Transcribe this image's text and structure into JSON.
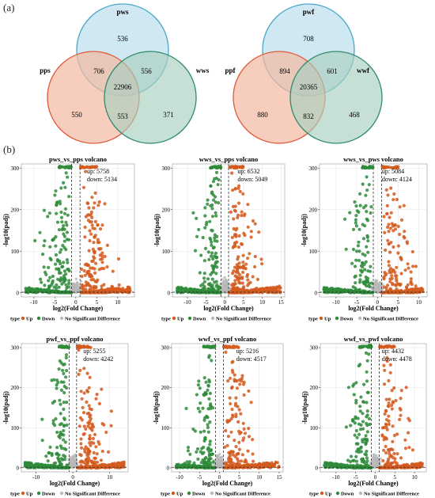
{
  "panel_labels": {
    "a": "(a)",
    "b": "(b)"
  },
  "venns": [
    {
      "sets": [
        "pws",
        "pps",
        "wws"
      ],
      "regions": {
        "top_only": "536",
        "left_only": "550",
        "right_only": "371",
        "top_left": "706",
        "top_right": "556",
        "left_right": "553",
        "center": "22906"
      }
    },
    {
      "sets": [
        "pwf",
        "ppf",
        "wwf"
      ],
      "regions": {
        "top_only": "708",
        "left_only": "880",
        "right_only": "468",
        "top_left": "894",
        "top_right": "601",
        "left_right": "832",
        "center": "20365"
      }
    }
  ],
  "colors": {
    "venn_top_fill": "#bfe0ee",
    "venn_top_stroke": "#4aa7c8",
    "venn_left_fill": "#f3b9a1",
    "venn_left_stroke": "#e05a3b",
    "venn_right_fill": "#a9cfbf",
    "venn_right_stroke": "#2e8b6e",
    "up": "#d35a1e",
    "down": "#2e8b3a",
    "nsd": "#b9b9b9",
    "panel_bg": "#ffffff",
    "grid": "#e6e6e6",
    "threshold": "#333333"
  },
  "legend": {
    "type_label": "type",
    "up": "Up",
    "down": "Down",
    "nsd": "No Significant Difference"
  },
  "chart_data": [
    {
      "type": "scatter",
      "title": "pws_vs_pps volcano",
      "xlabel": "log2(Fold Change)",
      "ylabel": "-log10(padj)",
      "xlim": [
        -13,
        14
      ],
      "ylim": [
        -10,
        310
      ],
      "xticks": [
        -10,
        -5,
        0,
        5,
        10
      ],
      "yticks": [
        0,
        100,
        200,
        300
      ],
      "up_label": "up: 5758",
      "down_label": "down: 5134",
      "up_count": 5758,
      "down_count": 5134,
      "thresholds": {
        "x": [
          -1,
          1
        ],
        "y": 1.3
      },
      "seed": 11
    },
    {
      "type": "scatter",
      "title": "wws_vs_pps volcano",
      "xlabel": "log2(Fold Change)",
      "ylabel": "-log10(padj)",
      "xlim": [
        -14,
        16
      ],
      "ylim": [
        -10,
        310
      ],
      "xticks": [
        -10,
        -5,
        0,
        5,
        10,
        15
      ],
      "yticks": [
        0,
        100,
        200,
        300
      ],
      "up_label": "up: 6532",
      "down_label": "down: 5049",
      "up_count": 6532,
      "down_count": 5049,
      "thresholds": {
        "x": [
          -1,
          1
        ],
        "y": 1.3
      },
      "seed": 23
    },
    {
      "type": "scatter",
      "title": "wws_vs_pws volcano",
      "xlabel": "log2(Fold Change)",
      "ylabel": "-log10(padj)",
      "xlim": [
        -14,
        12
      ],
      "ylim": [
        -10,
        310
      ],
      "xticks": [
        -10,
        -5,
        0,
        5,
        10
      ],
      "yticks": [
        0,
        100,
        200,
        300
      ],
      "up_label": "up: 5084",
      "down_label": "down: 4124",
      "up_count": 5084,
      "down_count": 4124,
      "thresholds": {
        "x": [
          -1,
          1
        ],
        "y": 1.3
      },
      "seed": 37
    },
    {
      "type": "scatter",
      "title": "pwf_vs_ppf volcano",
      "xlabel": "log2(Fold Change)",
      "ylabel": "-log10(padj)",
      "xlim": [
        -14,
        15
      ],
      "ylim": [
        -10,
        310
      ],
      "xticks": [
        -10,
        0,
        10
      ],
      "yticks": [
        0,
        100,
        200,
        300
      ],
      "up_label": "up: 5255",
      "down_label": "down: 4242",
      "up_count": 5255,
      "down_count": 4242,
      "thresholds": {
        "x": [
          -1,
          1
        ],
        "y": 1.3
      },
      "seed": 41
    },
    {
      "type": "scatter",
      "title": "wwf_vs_ppf volcano",
      "xlabel": "log2(Fold Change)",
      "ylabel": "-log10(padj)",
      "xlim": [
        -12,
        16
      ],
      "ylim": [
        -10,
        310
      ],
      "xticks": [
        -10,
        -5,
        0,
        5,
        10,
        15
      ],
      "yticks": [
        0,
        100,
        200,
        300
      ],
      "up_label": "up: 5216",
      "down_label": "down: 4517",
      "up_count": 5216,
      "down_count": 4517,
      "thresholds": {
        "x": [
          -1,
          1
        ],
        "y": 1.3
      },
      "seed": 53
    },
    {
      "type": "scatter",
      "title": "wwf_vs_pwf volcano",
      "xlabel": "log2(Fold Change)",
      "ylabel": "-log10(padj)",
      "xlim": [
        -14,
        13
      ],
      "ylim": [
        -10,
        310
      ],
      "xticks": [
        -10,
        -5,
        0,
        5,
        10
      ],
      "yticks": [
        0,
        100,
        200,
        300
      ],
      "up_label": "up: 4432",
      "down_label": "down: 4478",
      "up_count": 4432,
      "down_count": 4478,
      "thresholds": {
        "x": [
          -1,
          1
        ],
        "y": 1.3
      },
      "seed": 67
    }
  ]
}
